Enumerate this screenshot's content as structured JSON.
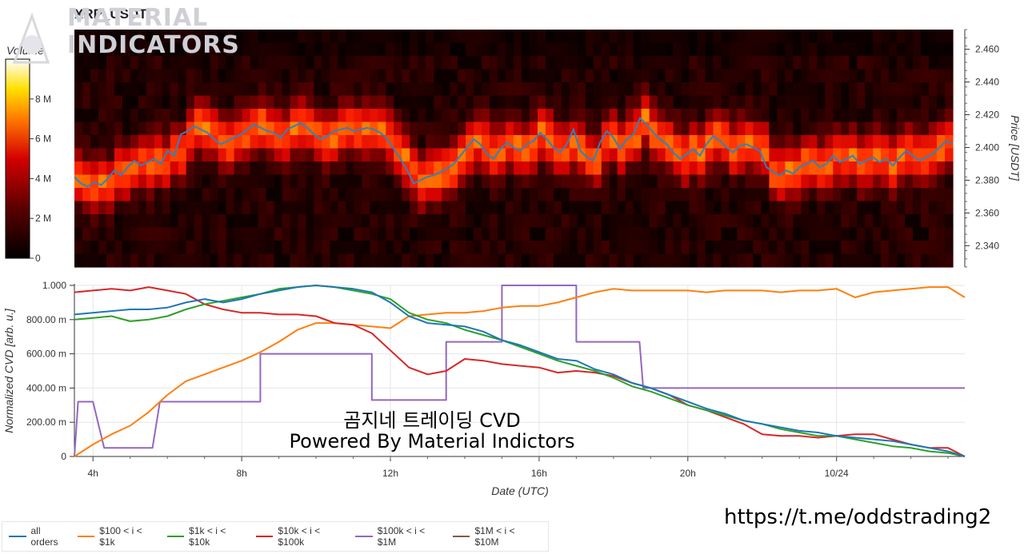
{
  "header": {
    "title": "XRP_USDT"
  },
  "colorbar": {
    "title": "Volume",
    "ticks": [
      "0",
      "2 M",
      "4 M",
      "6 M",
      "8 M"
    ],
    "tick_values": [
      0,
      2,
      4,
      6,
      8
    ],
    "max_value": 10
  },
  "heatmap": {
    "y_axis_label": "Price [USDT]",
    "y_ticks": [
      "2.340",
      "2.360",
      "2.380",
      "2.400",
      "2.420",
      "2.440",
      "2.460"
    ],
    "y_tick_values": [
      2.34,
      2.36,
      2.38,
      2.4,
      2.42,
      2.44,
      2.46
    ],
    "y_range": [
      2.327,
      2.472
    ],
    "price_line_color": "#2f82c0",
    "price_series": [
      2.382,
      2.378,
      2.376,
      2.379,
      2.377,
      2.381,
      2.386,
      2.383,
      2.388,
      2.392,
      2.389,
      2.391,
      2.393,
      2.39,
      2.398,
      2.395,
      2.408,
      2.41,
      2.413,
      2.411,
      2.409,
      2.405,
      2.402,
      2.404,
      2.406,
      2.408,
      2.411,
      2.414,
      2.412,
      2.41,
      2.409,
      2.406,
      2.411,
      2.413,
      2.415,
      2.412,
      2.408,
      2.405,
      2.407,
      2.41,
      2.411,
      2.412,
      2.41,
      2.411,
      2.412,
      2.411,
      2.409,
      2.405,
      2.399,
      2.393,
      2.386,
      2.378,
      2.38,
      2.382,
      2.383,
      2.385,
      2.387,
      2.39,
      2.395,
      2.4,
      2.405,
      2.402,
      2.396,
      2.393,
      2.399,
      2.403,
      2.4,
      2.398,
      2.402,
      2.404,
      2.409,
      2.405,
      2.4,
      2.397,
      2.402,
      2.411,
      2.398,
      2.394,
      2.392,
      2.403,
      2.41,
      2.406,
      2.399,
      2.405,
      2.408,
      2.418,
      2.414,
      2.409,
      2.405,
      2.402,
      2.397,
      2.393,
      2.396,
      2.399,
      2.395,
      2.402,
      2.407,
      2.404,
      2.4,
      2.397,
      2.401,
      2.402,
      2.4,
      2.398,
      2.388,
      2.385,
      2.383,
      2.386,
      2.384,
      2.388,
      2.39,
      2.392,
      2.388,
      2.39,
      2.395,
      2.391,
      2.393,
      2.395,
      2.39,
      2.392,
      2.394,
      2.391,
      2.393,
      2.389,
      2.394,
      2.398,
      2.395,
      2.392,
      2.394,
      2.396,
      2.4,
      2.404,
      2.402
    ]
  },
  "cvd": {
    "y_axis_label": "Normalized CVD [arb. u.]",
    "x_axis_label": "Date (UTC)",
    "y_ticks": [
      "0",
      "200.00 m",
      "400.00 m",
      "600.00 m",
      "800.00 m",
      "1.000"
    ],
    "y_tick_values": [
      0,
      0.2,
      0.4,
      0.6,
      0.8,
      1.0
    ],
    "y_range": [
      0,
      1.0
    ],
    "x_ticks": [
      "4h",
      "8h",
      "12h",
      "16h",
      "20h",
      "10/24"
    ],
    "x_tick_hours": [
      4,
      8,
      12,
      16,
      20,
      24
    ],
    "x_range_hours": [
      3.5,
      27.45
    ]
  },
  "chart_data": {
    "type": "line",
    "x_label": "Date (UTC)",
    "y_label": "Normalized CVD [arb. u.]",
    "x_hours": [
      3.5,
      4,
      4.5,
      5,
      5.5,
      6,
      6.5,
      7,
      7.5,
      8,
      8.5,
      9,
      9.5,
      10,
      10.5,
      11,
      11.5,
      12,
      12.5,
      13,
      13.5,
      14,
      14.5,
      15,
      15.5,
      16,
      16.5,
      17,
      17.5,
      18,
      18.5,
      19,
      19.5,
      20,
      20.5,
      21,
      21.5,
      22,
      22.5,
      23,
      23.5,
      24,
      24.5,
      25,
      25.5,
      26,
      26.5,
      27,
      27.45
    ],
    "series": [
      {
        "name": "all orders",
        "color": "#1f77b4",
        "values": [
          0.83,
          0.84,
          0.85,
          0.86,
          0.86,
          0.87,
          0.9,
          0.92,
          0.9,
          0.92,
          0.95,
          0.97,
          0.99,
          1.0,
          0.99,
          0.98,
          0.96,
          0.9,
          0.82,
          0.78,
          0.77,
          0.76,
          0.73,
          0.68,
          0.65,
          0.61,
          0.57,
          0.56,
          0.51,
          0.48,
          0.43,
          0.4,
          0.36,
          0.32,
          0.28,
          0.25,
          0.21,
          0.19,
          0.17,
          0.15,
          0.14,
          0.12,
          0.11,
          0.1,
          0.09,
          0.07,
          0.05,
          0.03,
          0.0
        ]
      },
      {
        "name": "$100 < i < $1k",
        "color": "#ff7f0e",
        "values": [
          0.0,
          0.07,
          0.13,
          0.18,
          0.26,
          0.36,
          0.44,
          0.48,
          0.52,
          0.56,
          0.61,
          0.67,
          0.74,
          0.78,
          0.78,
          0.77,
          0.76,
          0.75,
          0.82,
          0.83,
          0.84,
          0.84,
          0.85,
          0.87,
          0.88,
          0.88,
          0.9,
          0.93,
          0.96,
          0.98,
          0.97,
          0.97,
          0.97,
          0.97,
          0.96,
          0.97,
          0.97,
          0.97,
          0.96,
          0.97,
          0.97,
          0.98,
          0.93,
          0.96,
          0.97,
          0.98,
          0.99,
          0.99,
          0.93
        ]
      },
      {
        "name": "$1k < i < $10k",
        "color": "#2ca02c",
        "values": [
          0.8,
          0.81,
          0.82,
          0.79,
          0.8,
          0.82,
          0.86,
          0.89,
          0.91,
          0.93,
          0.95,
          0.98,
          0.99,
          1.0,
          0.99,
          0.97,
          0.95,
          0.92,
          0.84,
          0.8,
          0.78,
          0.74,
          0.71,
          0.68,
          0.64,
          0.6,
          0.56,
          0.53,
          0.5,
          0.46,
          0.41,
          0.38,
          0.34,
          0.3,
          0.27,
          0.24,
          0.21,
          0.19,
          0.16,
          0.14,
          0.12,
          0.12,
          0.1,
          0.08,
          0.06,
          0.05,
          0.03,
          0.02,
          0.0
        ]
      },
      {
        "name": "$10k < i < $100k",
        "color": "#d62728",
        "values": [
          0.96,
          0.97,
          0.98,
          0.97,
          0.99,
          0.97,
          0.95,
          0.89,
          0.86,
          0.84,
          0.84,
          0.83,
          0.83,
          0.82,
          0.78,
          0.77,
          0.72,
          0.62,
          0.52,
          0.48,
          0.5,
          0.57,
          0.56,
          0.54,
          0.53,
          0.52,
          0.49,
          0.5,
          0.49,
          0.47,
          0.43,
          0.4,
          0.36,
          0.3,
          0.27,
          0.23,
          0.19,
          0.13,
          0.12,
          0.12,
          0.11,
          0.12,
          0.13,
          0.13,
          0.1,
          0.07,
          0.05,
          0.05,
          0.0
        ]
      },
      {
        "name": "$100k < i < $1M",
        "color": "#9467bd",
        "step_x": [
          3.5,
          3.6,
          4.0,
          4.3,
          5.6,
          5.8,
          6.4,
          8.5,
          8.5,
          11.5,
          11.5,
          13.5,
          13.5,
          15,
          15,
          17,
          17,
          18.7,
          18.8,
          27.45
        ],
        "step_y": [
          0.0,
          0.32,
          0.32,
          0.05,
          0.05,
          0.32,
          0.32,
          0.32,
          0.6,
          0.6,
          0.33,
          0.33,
          0.67,
          0.67,
          1.0,
          1.0,
          0.67,
          0.67,
          0.4,
          0.4
        ]
      },
      {
        "name": "$1M < i < $10M",
        "color": "#8c564b",
        "values": []
      }
    ]
  },
  "watermark": {
    "line1": "곰지네 트레이딩 CVD",
    "line2": "Powered By Material Indictors",
    "logo_line1": "MATERIAL",
    "logo_line2": "INDICATORS"
  },
  "footer": {
    "link": "https://t.me/oddstrading2"
  }
}
